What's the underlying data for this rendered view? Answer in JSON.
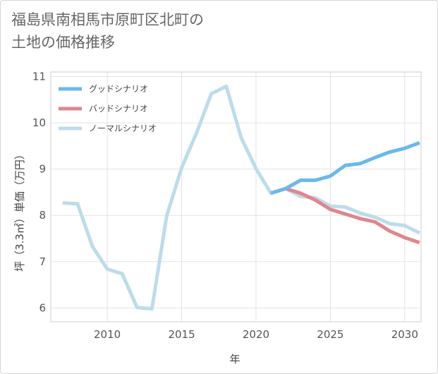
{
  "title": {
    "line1": "福島県南相馬市原町区北町の",
    "line2": "土地の価格推移"
  },
  "chart_data": {
    "type": "line",
    "title": "福島県南相馬市原町区北町の土地の価格推移",
    "xlabel": "年",
    "ylabel": "坪（3.3㎡）単価（万円）",
    "xlim": [
      2006.2,
      2031.1
    ],
    "ylim": [
      5.7,
      11.1
    ],
    "xticks": [
      2010,
      2015,
      2020,
      2025,
      2030
    ],
    "yticks": [
      6,
      7,
      8,
      9,
      10,
      11
    ],
    "grid": true,
    "legend_position": "top-left",
    "series": [
      {
        "name": "グッドシナリオ",
        "color": "#6ab8ec",
        "x": [
          2021,
          2022,
          2023,
          2024,
          2025,
          2026,
          2027,
          2028,
          2029,
          2030,
          2031
        ],
        "values": [
          8.48,
          8.58,
          8.76,
          8.76,
          8.85,
          9.08,
          9.12,
          9.25,
          9.37,
          9.45,
          9.57
        ]
      },
      {
        "name": "バッドシナリオ",
        "color": "#e0868e",
        "x": [
          2021,
          2022,
          2023,
          2024,
          2025,
          2026,
          2027,
          2028,
          2029,
          2030,
          2031
        ],
        "values": [
          8.48,
          8.58,
          8.48,
          8.33,
          8.13,
          8.03,
          7.93,
          7.86,
          7.66,
          7.52,
          7.41
        ]
      },
      {
        "name": "ノーマルシナリオ",
        "color": "#bcdcea",
        "x": [
          2007,
          2008,
          2009,
          2010,
          2011,
          2012,
          2013,
          2014,
          2015,
          2016,
          2017,
          2018,
          2019,
          2020,
          2021,
          2022,
          2023,
          2024,
          2025,
          2026,
          2027,
          2028,
          2029,
          2030,
          2031
        ],
        "values": [
          8.27,
          8.25,
          7.33,
          6.84,
          6.74,
          6.01,
          5.98,
          8.0,
          9.03,
          9.78,
          10.63,
          10.79,
          9.68,
          9.01,
          8.48,
          8.58,
          8.41,
          8.38,
          8.2,
          8.18,
          8.05,
          7.96,
          7.82,
          7.78,
          7.62
        ]
      }
    ]
  }
}
